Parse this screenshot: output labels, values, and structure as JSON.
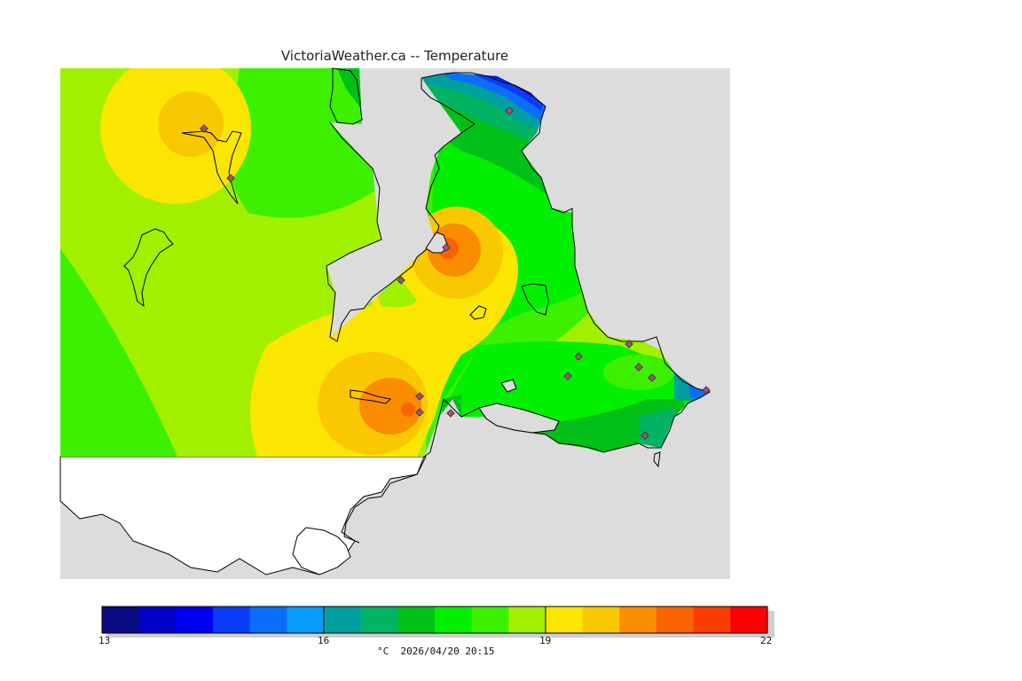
{
  "title": "VictoriaWeather.ca -- Temperature",
  "colorbar": {
    "colors": [
      "#0a0a80",
      "#0000c8",
      "#0000f0",
      "#0a3cfa",
      "#0a6efa",
      "#0a9cfa",
      "#00a0a0",
      "#00b464",
      "#00c018",
      "#00f000",
      "#3cf000",
      "#a0f000",
      "#fae600",
      "#fac800",
      "#fa8c00",
      "#fa6400",
      "#fa3c00",
      "#fa0000"
    ],
    "min": 13,
    "max": 22,
    "tick_labels": [
      "13",
      "16",
      "19",
      "22"
    ]
  },
  "caption": "°C  2026/04/20 20:15",
  "colors": {
    "water": "#dcdcdc",
    "nodata_land": "#ffffff",
    "station_marker": "#a05078"
  }
}
